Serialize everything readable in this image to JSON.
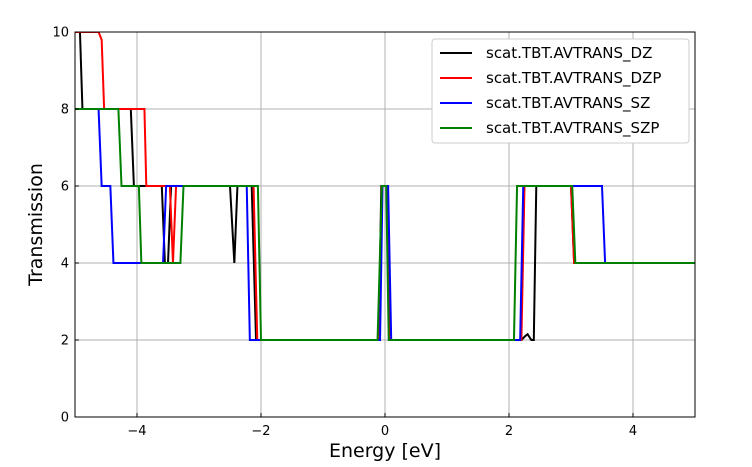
{
  "chart_data": {
    "type": "line",
    "title": "",
    "xlabel": "Energy [eV]",
    "ylabel": "Transmission",
    "xlim": [
      -5,
      5
    ],
    "ylim": [
      0,
      10
    ],
    "xticks": [
      -4,
      -2,
      0,
      2,
      4
    ],
    "xtick_labels": [
      "−4",
      "−2",
      "0",
      "2",
      "4"
    ],
    "yticks": [
      0,
      2,
      4,
      6,
      8,
      10
    ],
    "ytick_labels": [
      "0",
      "2",
      "4",
      "6",
      "8",
      "10"
    ],
    "grid": true,
    "legend_position": "top-right",
    "series": [
      {
        "name": "scat.TBT.AVTRANS_DZ",
        "color": "#000000",
        "points": [
          [
            -4.98,
            10
          ],
          [
            -4.92,
            10
          ],
          [
            -4.88,
            8
          ],
          [
            -4.1,
            8
          ],
          [
            -4.05,
            6
          ],
          [
            -3.6,
            6
          ],
          [
            -3.55,
            4
          ],
          [
            -3.5,
            4
          ],
          [
            -3.45,
            6
          ],
          [
            -2.5,
            6
          ],
          [
            -2.43,
            4
          ],
          [
            -2.38,
            6
          ],
          [
            -2.15,
            6
          ],
          [
            -2.08,
            2
          ],
          [
            -0.1,
            2
          ],
          [
            -0.06,
            6
          ],
          [
            0.03,
            6
          ],
          [
            0.08,
            2
          ],
          [
            2.2,
            2
          ],
          [
            2.26,
            2.1
          ],
          [
            2.3,
            2.15
          ],
          [
            2.36,
            2
          ],
          [
            2.4,
            2
          ],
          [
            2.44,
            6
          ],
          [
            3.0,
            6
          ],
          [
            3.05,
            4
          ],
          [
            5,
            4
          ]
        ]
      },
      {
        "name": "scat.TBT.AVTRANS_DZP",
        "color": "#ff0000",
        "points": [
          [
            -5,
            10
          ],
          [
            -4.62,
            10
          ],
          [
            -4.57,
            9.8
          ],
          [
            -4.53,
            8
          ],
          [
            -3.88,
            8
          ],
          [
            -3.85,
            6
          ],
          [
            -3.47,
            6
          ],
          [
            -3.42,
            4
          ],
          [
            -3.37,
            6
          ],
          [
            -2.12,
            6
          ],
          [
            -2.06,
            2
          ],
          [
            -0.09,
            2
          ],
          [
            -0.05,
            6
          ],
          [
            0.04,
            6
          ],
          [
            0.09,
            2
          ],
          [
            2.2,
            2
          ],
          [
            2.25,
            6
          ],
          [
            3.0,
            6
          ],
          [
            3.05,
            4
          ],
          [
            5,
            4
          ]
        ]
      },
      {
        "name": "scat.TBT.AVTRANS_SZ",
        "color": "#0000ff",
        "points": [
          [
            -5,
            8
          ],
          [
            -4.62,
            8
          ],
          [
            -4.57,
            6
          ],
          [
            -4.43,
            6
          ],
          [
            -4.38,
            4
          ],
          [
            -3.58,
            4
          ],
          [
            -3.53,
            6
          ],
          [
            -2.23,
            6
          ],
          [
            -2.18,
            2
          ],
          [
            -0.08,
            2
          ],
          [
            -0.04,
            6
          ],
          [
            0.05,
            6
          ],
          [
            0.1,
            2
          ],
          [
            2.18,
            2
          ],
          [
            2.23,
            6
          ],
          [
            3.5,
            6
          ],
          [
            3.55,
            4
          ],
          [
            5,
            4
          ]
        ]
      },
      {
        "name": "scat.TBT.AVTRANS_SZP",
        "color": "#008000",
        "points": [
          [
            -5,
            8
          ],
          [
            -4.3,
            8
          ],
          [
            -4.25,
            6
          ],
          [
            -3.97,
            6
          ],
          [
            -3.93,
            4
          ],
          [
            -3.3,
            4
          ],
          [
            -3.25,
            6
          ],
          [
            -2.05,
            6
          ],
          [
            -2.0,
            2
          ],
          [
            -0.12,
            2
          ],
          [
            -0.05,
            6
          ],
          [
            0.02,
            6
          ],
          [
            0.06,
            2
          ],
          [
            2.08,
            2
          ],
          [
            2.13,
            6
          ],
          [
            3.02,
            6
          ],
          [
            3.07,
            4
          ],
          [
            5,
            4
          ]
        ]
      }
    ]
  }
}
